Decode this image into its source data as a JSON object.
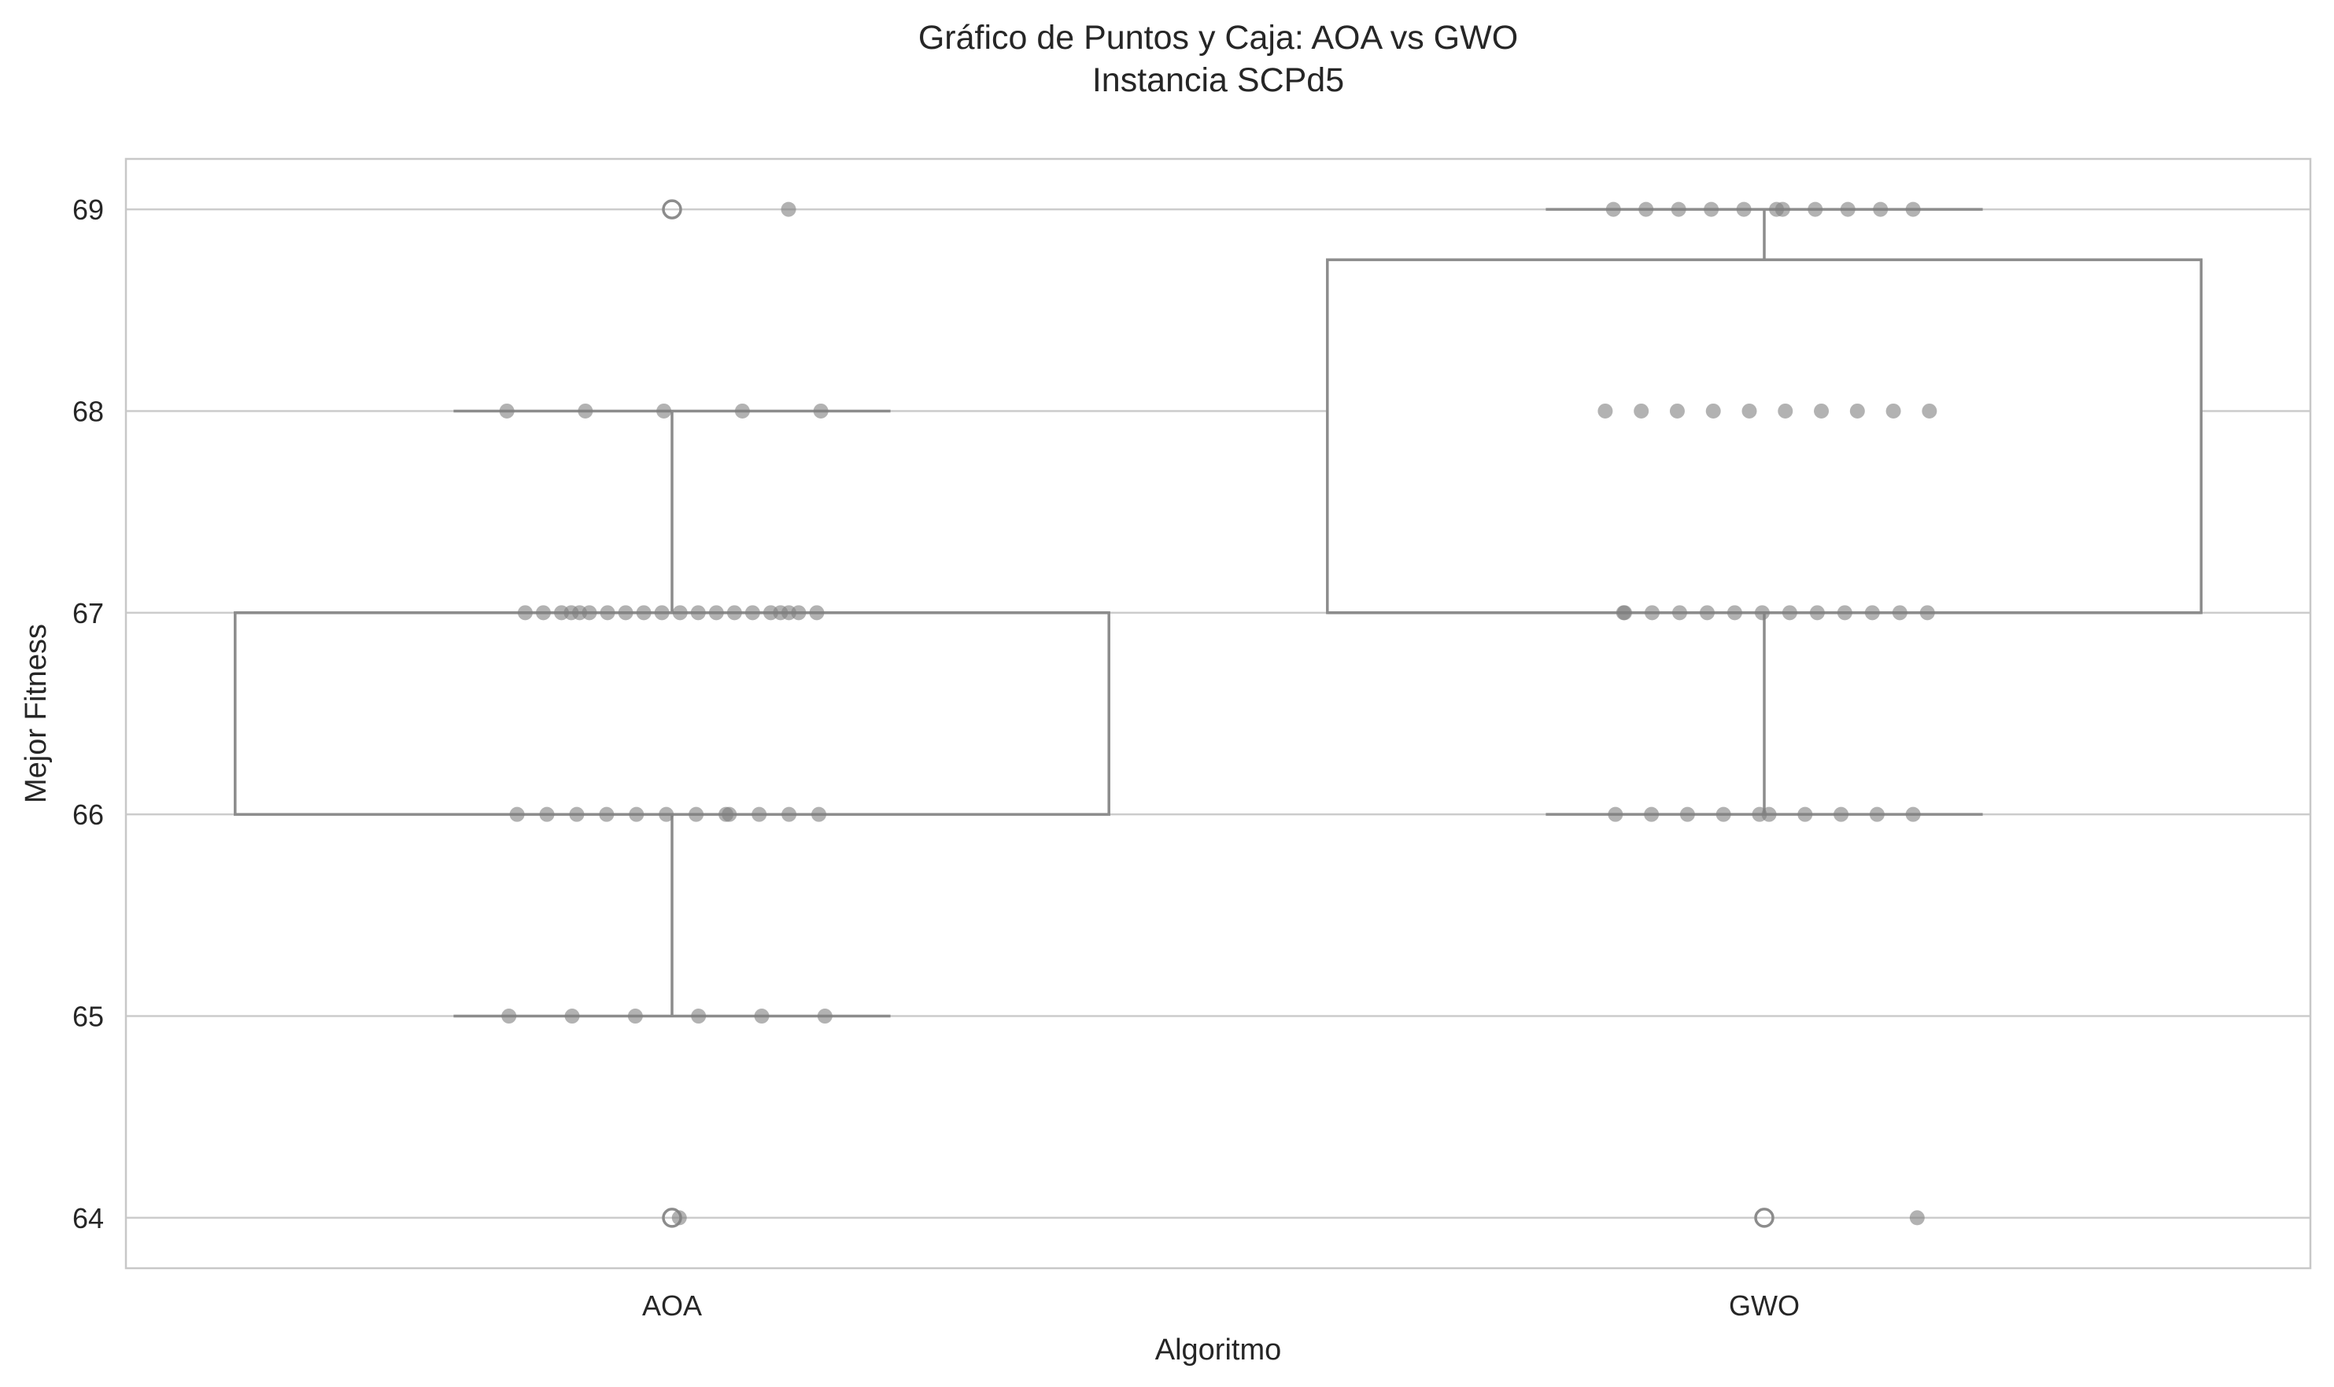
{
  "chart_data": {
    "type": "box",
    "title": "Gráfico de Puntos y Caja: AOA vs GWO",
    "subtitle": "Instancia SCPd5",
    "xlabel": "Algoritmo",
    "ylabel": "Mejor Fitness",
    "categories": [
      "AOA",
      "GWO"
    ],
    "ylim": [
      63.75,
      69.25
    ],
    "yticks": [
      64,
      65,
      66,
      67,
      68,
      69
    ],
    "grid": true,
    "boxes": [
      {
        "name": "AOA",
        "q1": 66,
        "median": 67,
        "q3": 67,
        "whislo": 65,
        "whishi": 68,
        "fliers": [
          64,
          69
        ]
      },
      {
        "name": "GWO",
        "q1": 67,
        "median": 67,
        "q3": 68.75,
        "whislo": 66,
        "whishi": 69,
        "fliers": [
          64
        ]
      }
    ],
    "points": [
      {
        "category": "AOA",
        "values": [
          69,
          68,
          68,
          68,
          68,
          68,
          67,
          67,
          67,
          67,
          67,
          67,
          67,
          67,
          67,
          67,
          67,
          67,
          67,
          67,
          67,
          67,
          67,
          67,
          67,
          67,
          66,
          66,
          66,
          66,
          66,
          66,
          66,
          66,
          66,
          66,
          66,
          66,
          65,
          65,
          65,
          65,
          65,
          65,
          64
        ]
      },
      {
        "category": "GWO",
        "values": [
          69,
          69,
          69,
          69,
          69,
          69,
          69,
          69,
          69,
          69,
          69,
          68,
          68,
          68,
          68,
          68,
          68,
          68,
          68,
          68,
          68,
          67,
          67,
          67,
          67,
          67,
          67,
          67,
          67,
          67,
          67,
          67,
          67,
          67,
          66,
          66,
          66,
          66,
          66,
          66,
          66,
          66,
          66,
          66,
          64
        ]
      }
    ]
  }
}
